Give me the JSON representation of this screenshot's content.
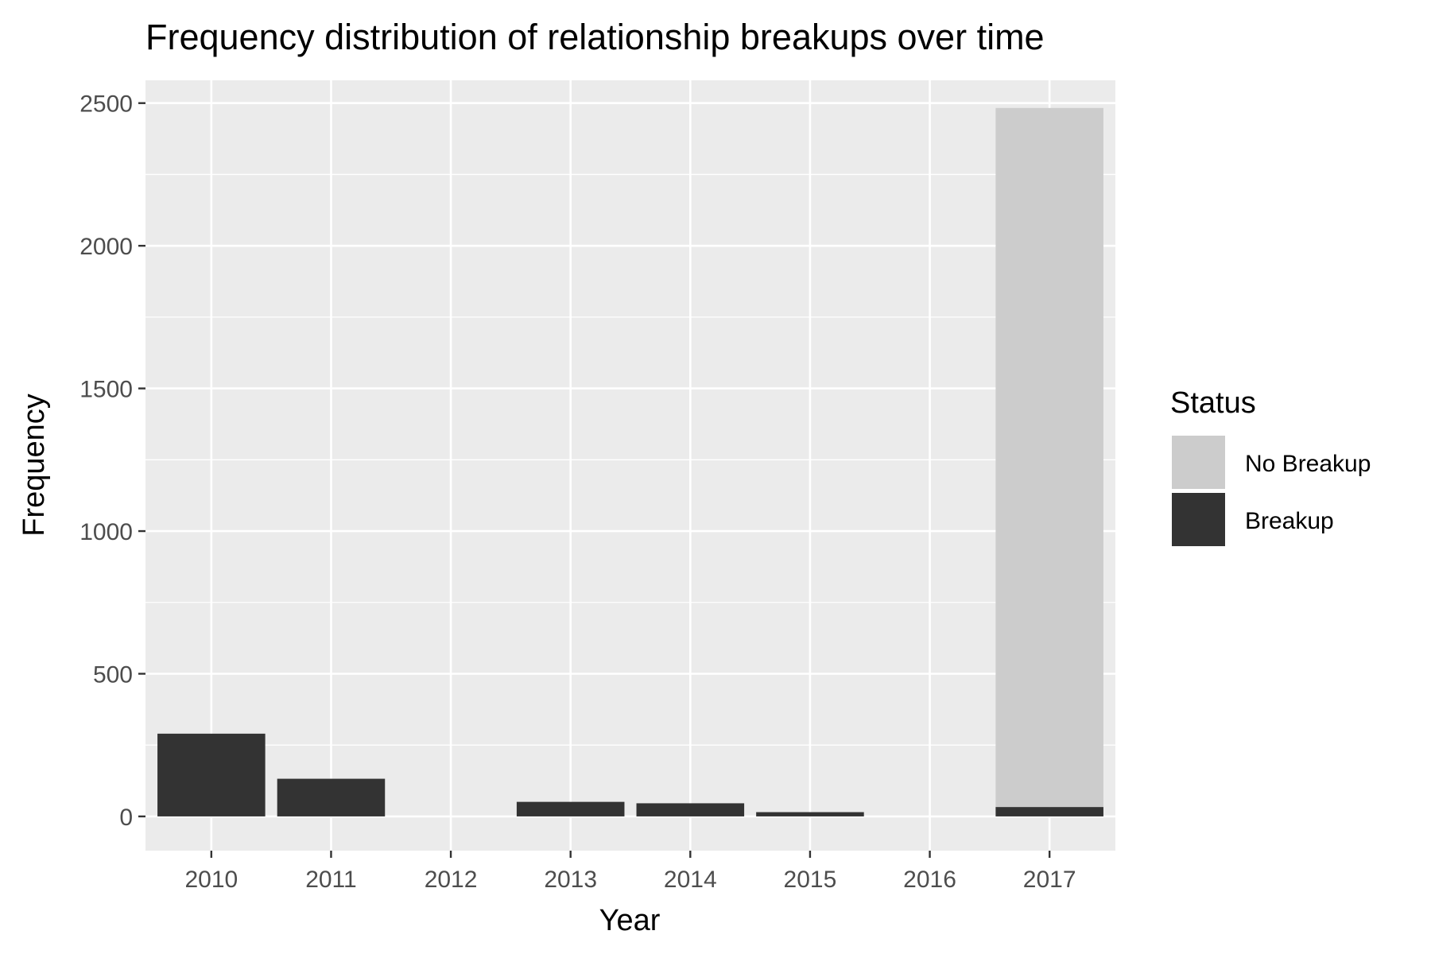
{
  "chart_data": {
    "type": "bar",
    "stacked": true,
    "title": "Frequency distribution of relationship breakups over time",
    "xlabel": "Year",
    "ylabel": "Frequency",
    "categories": [
      "2010",
      "2011",
      "2012",
      "2013",
      "2014",
      "2015",
      "2016",
      "2017"
    ],
    "ylim": [
      -120,
      2580
    ],
    "yticks": [
      0,
      500,
      1000,
      1500,
      2000,
      2500
    ],
    "grid": true,
    "legend": {
      "title": "Status",
      "position": "right",
      "entries": [
        "No Breakup",
        "Breakup"
      ]
    },
    "series": [
      {
        "name": "Breakup",
        "color": "#333333",
        "values": [
          290,
          132,
          0,
          51,
          46,
          15,
          0,
          33
        ]
      },
      {
        "name": "No Breakup",
        "color": "#cccccc",
        "values": [
          0,
          0,
          0,
          0,
          0,
          0,
          0,
          2450
        ]
      }
    ],
    "colors": {
      "panel": "#ebebeb",
      "grid": "#ffffff",
      "tick_text": "#4d4d4d"
    }
  }
}
